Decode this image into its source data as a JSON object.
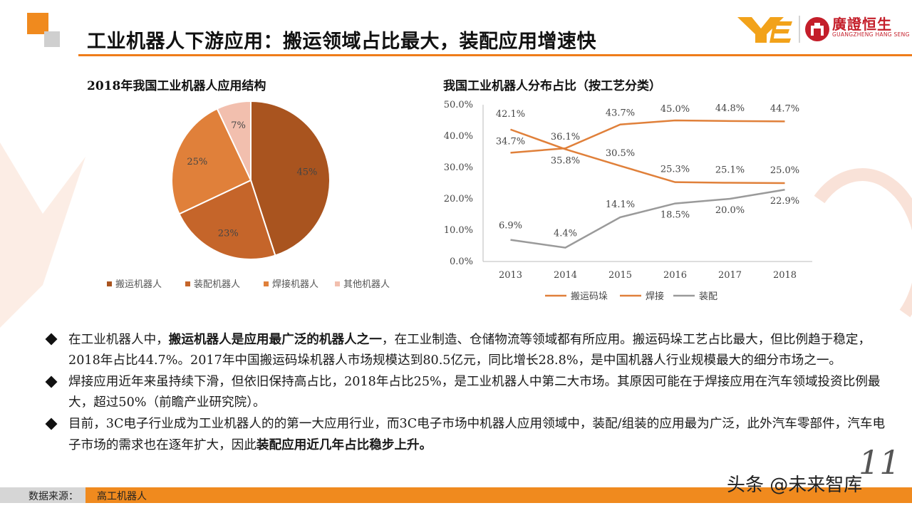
{
  "title": "工业机器人下游应用：搬运领域占比最大，装配应用增速快",
  "logo": {
    "cn": "廣證恒生",
    "en": "GUANGZHENG HANG SENG"
  },
  "colors": {
    "accent": "#ef7d1a",
    "pie": [
      "#a9541f",
      "#c5652a",
      "#e0803a",
      "#f2bfae"
    ],
    "lines": [
      "#e0803a",
      "#e0803a",
      "#9a9a9a"
    ]
  },
  "chart_data": [
    {
      "type": "pie",
      "title": "2018年我国工业机器人应用结构",
      "categories": [
        "搬运机器人",
        "装配机器人",
        "焊接机器人",
        "其他机器人"
      ],
      "values": [
        45,
        23,
        25,
        7
      ],
      "data_labels": [
        "45%",
        "23%",
        "25%",
        "7%"
      ],
      "legend": "bottom"
    },
    {
      "type": "line",
      "title": "我国工业机器人分布占比（按工艺分类）",
      "x": [
        "2013",
        "2014",
        "2015",
        "2016",
        "2017",
        "2018"
      ],
      "ylim": [
        0,
        50
      ],
      "y_ticks": [
        "0.0%",
        "10.0%",
        "20.0%",
        "30.0%",
        "40.0%",
        "50.0%"
      ],
      "series": [
        {
          "name": "搬运码垛",
          "values": [
            34.7,
            36.1,
            43.7,
            45.0,
            44.8,
            44.7
          ],
          "labels": [
            "34.7%",
            "36.1%",
            "43.7%",
            "45.0%",
            "44.8%",
            "44.7%"
          ]
        },
        {
          "name": "焊接",
          "values": [
            42.1,
            35.8,
            30.5,
            25.3,
            25.1,
            25.0
          ],
          "labels": [
            "42.1%",
            "35.8%",
            "30.5%",
            "25.3%",
            "25.1%",
            "25.0%"
          ]
        },
        {
          "name": "装配",
          "values": [
            6.9,
            4.4,
            14.1,
            18.5,
            20.0,
            22.9
          ],
          "labels": [
            "6.9%",
            "4.4%",
            "14.1%",
            "18.5%",
            "20.0%",
            "22.9%"
          ]
        }
      ],
      "grid": false,
      "legend": "bottom"
    }
  ],
  "bullets": [
    {
      "a": "在工业机器人中，",
      "b": "搬运机器人是应用最广泛的机器人之一",
      "c": "，在工业制造、仓储物流等领域都有所应用。搬运码垛工艺占比最大，但比例趋于稳定，2018年占比44.7%。2017年中国搬运码垛机器人市场规模达到80.5亿元，同比增长28.8%，是中国机器人行业规模最大的细分市场之一。"
    },
    {
      "a": "焊接应用近年来虽持续下滑，但依旧保持高占比，2018年占比25%，是工业机器人中第二大市场。其原因可能在于焊接应用在汽车领域投资比例最大，超过50%（前瞻产业研究院）。",
      "b": "",
      "c": ""
    },
    {
      "a": "目前，3C电子行业成为工业机器人的的第一大应用行业，而3C电子市场中机器人应用领域中，装配/组装的应用最为广泛，此外汽车零部件，汽车电子市场的需求也在逐年扩大，因此",
      "b": "装配应用近几年占比稳步上升。",
      "c": ""
    }
  ],
  "source": {
    "label": "数据来源：",
    "value": "高工机器人"
  },
  "page_number": "11",
  "watermark": "头条 @未来智库"
}
